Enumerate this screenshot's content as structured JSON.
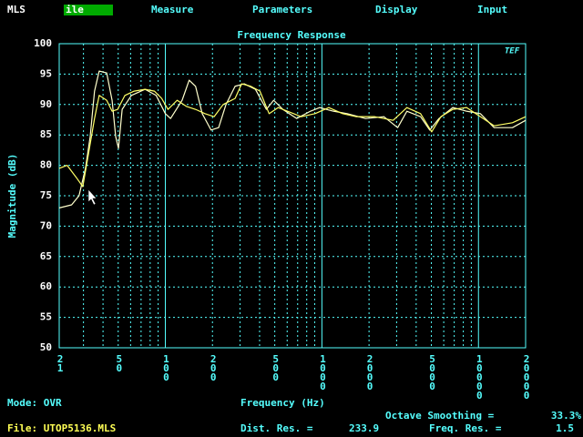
{
  "menu": {
    "items": [
      "MLS",
      "ile",
      "Measure",
      "Parameters",
      "Display",
      "Input"
    ]
  },
  "chart_data": {
    "type": "line",
    "title": "Frequency Response",
    "logo": "TEF",
    "x_label": "Frequency (Hz)",
    "y_label": "Magnitude (dB)",
    "xscale": "log",
    "xlim": [
      21,
      20000
    ],
    "ylim": [
      50,
      100
    ],
    "xticks": [
      21,
      50,
      100,
      200,
      500,
      1000,
      2000,
      5000,
      10000,
      20000
    ],
    "xgrid_minor": [
      30,
      40,
      60,
      70,
      80,
      90,
      300,
      400,
      600,
      700,
      800,
      900,
      3000,
      4000,
      6000,
      7000,
      8000,
      9000
    ],
    "yticks": [
      50,
      55,
      60,
      65,
      70,
      75,
      80,
      85,
      90,
      95,
      100
    ],
    "grid": true,
    "series": [
      {
        "color": "#ffffcc",
        "x": [
          21,
          25.2,
          28.1,
          30.9,
          33.1,
          35.3,
          37.8,
          42.2,
          45.7,
          48.2,
          50.2,
          53,
          60.7,
          74.3,
          87.3,
          100,
          108,
          128,
          142,
          156,
          172,
          196,
          219,
          244,
          279,
          319,
          376,
          442,
          492,
          563,
          690,
          845,
          967,
          1184,
          1449,
          1900,
          2489,
          3048,
          3490,
          4266,
          4887,
          5598,
          6855,
          8395,
          10280,
          12580,
          16480,
          20000
        ],
        "values": [
          73,
          73.5,
          75,
          79.5,
          84.7,
          92.2,
          95.5,
          95.2,
          90.7,
          84.7,
          82.8,
          89.2,
          91.5,
          92.5,
          91.5,
          88.5,
          87.7,
          90.7,
          94,
          93,
          88.5,
          85.8,
          86.2,
          90,
          93,
          93.4,
          92.5,
          89.2,
          90.7,
          89.2,
          87.7,
          88.9,
          89.5,
          88.9,
          88.5,
          87.7,
          88,
          86.2,
          88.9,
          88,
          85.8,
          87.7,
          89.5,
          88.9,
          88.5,
          86.2,
          86.2,
          87.4
        ]
      },
      {
        "color": "#ffff66",
        "x": [
          21,
          23.6,
          27,
          29.7,
          32.2,
          35.3,
          37.8,
          42.2,
          45.7,
          49.6,
          55.2,
          63.2,
          74.3,
          85.1,
          94.8,
          104,
          119,
          136,
          156,
          179,
          205,
          234,
          279,
          307,
          351,
          402,
          460,
          526,
          603,
          738,
          904,
          1107,
          1355,
          1660,
          2174,
          2851,
          3490,
          4266,
          5024,
          5754,
          6855,
          8395,
          10280,
          12580,
          16480,
          20000
        ],
        "values": [
          79.5,
          80,
          78,
          76.5,
          81.7,
          87.7,
          91.5,
          90.7,
          88.9,
          89.2,
          91.5,
          92.2,
          92.5,
          92.2,
          91,
          89.2,
          90.7,
          89.7,
          89.2,
          88.5,
          88,
          90,
          91,
          93.4,
          93,
          92.2,
          88.5,
          89.5,
          88.9,
          88,
          88.5,
          89.5,
          88.5,
          88,
          88,
          87.4,
          89.5,
          88.5,
          85.5,
          88,
          89.2,
          89.5,
          88,
          86.5,
          87,
          88
        ]
      }
    ]
  },
  "status": {
    "mode": "Mode: OVR",
    "smoothing_label": "Octave Smoothing =",
    "smoothing_value": "33.3%",
    "file": "File: UTOP5136.MLS",
    "dist_label": "Dist. Res. =",
    "dist_value": "233.9",
    "freq_label": "Freq. Res. =",
    "freq_value": "1.5"
  }
}
